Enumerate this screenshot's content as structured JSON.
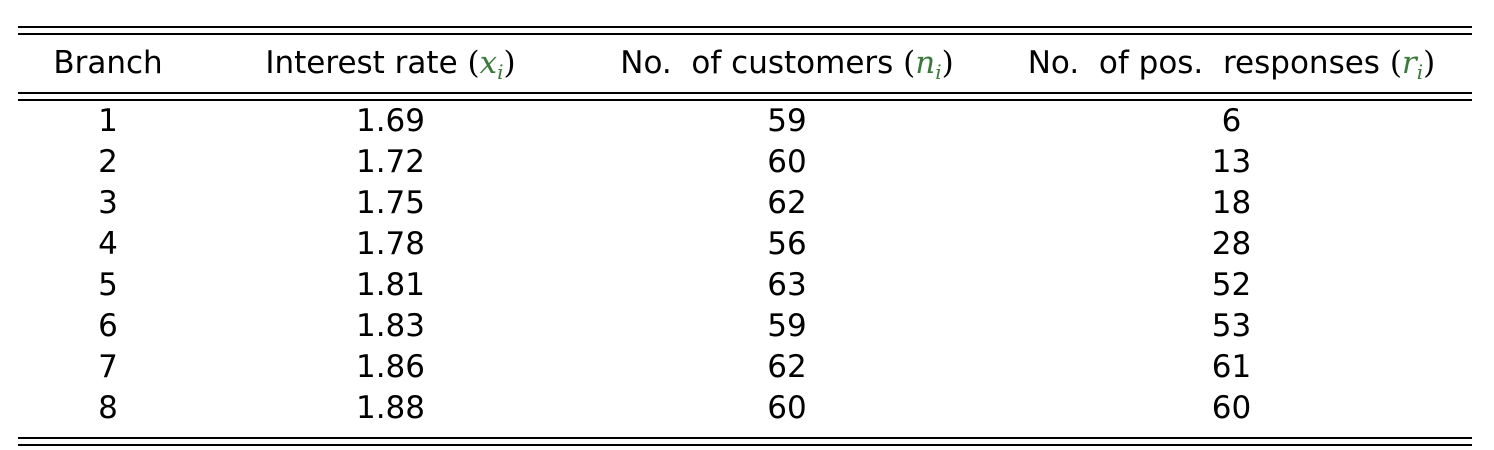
{
  "table": {
    "headers": [
      {
        "label": "Branch",
        "var": "",
        "sub": ""
      },
      {
        "label": "Interest rate",
        "var": "x",
        "sub": "i"
      },
      {
        "label": "No.  of customers",
        "var": "n",
        "sub": "i"
      },
      {
        "label": "No.  of pos.  responses",
        "var": "r",
        "sub": "i"
      }
    ],
    "rows": [
      [
        "1",
        "1.69",
        "59",
        "6"
      ],
      [
        "2",
        "1.72",
        "60",
        "13"
      ],
      [
        "3",
        "1.75",
        "62",
        "18"
      ],
      [
        "4",
        "1.78",
        "56",
        "28"
      ],
      [
        "5",
        "1.81",
        "63",
        "52"
      ],
      [
        "6",
        "1.83",
        "59",
        "53"
      ],
      [
        "7",
        "1.86",
        "62",
        "61"
      ],
      [
        "8",
        "1.88",
        "60",
        "60"
      ]
    ],
    "variable_color": "#3b7a3b"
  }
}
